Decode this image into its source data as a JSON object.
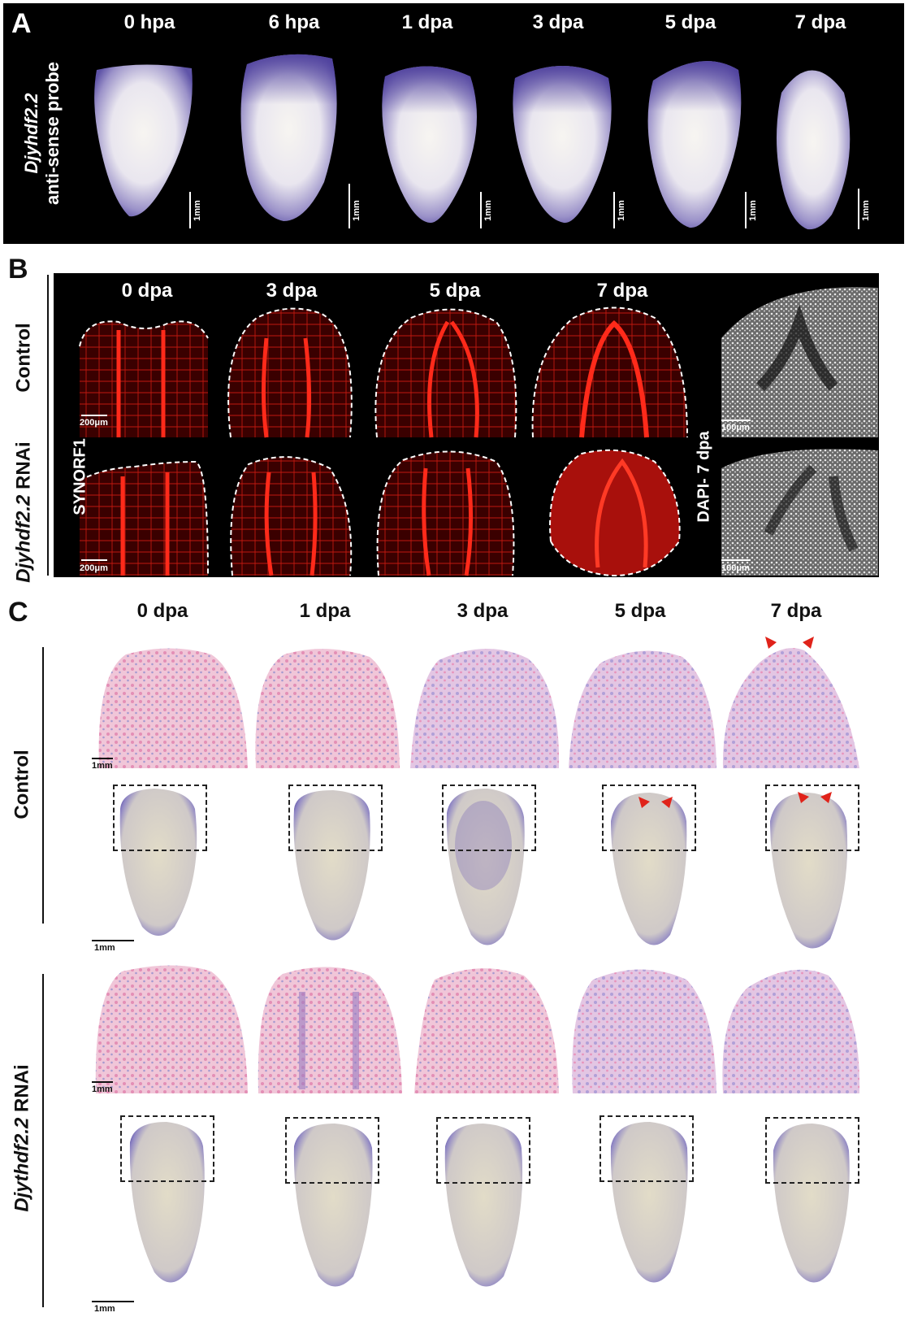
{
  "panel_a": {
    "letter": "A",
    "row_label_gene": "Djyhdf2.2",
    "row_label_probe": "anti-sense probe",
    "timepoints": [
      "0 hpa",
      "6 hpa",
      "1 dpa",
      "3 dpa",
      "5 dpa",
      "7 dpa"
    ],
    "scale_label": "1mm"
  },
  "panel_b": {
    "letter": "B",
    "timepoints": [
      "0 dpa",
      "3 dpa",
      "5 dpa",
      "7 dpa"
    ],
    "row_control": "Control",
    "row_rnai_gene": "Djyhdf2.2",
    "row_rnai_suffix": " RNAi",
    "stain_label": "SYNORF1",
    "dapi_label": "DAPI- 7 dpa",
    "scale_200": "200μm",
    "scale_100": "100μm"
  },
  "panel_c": {
    "letter": "C",
    "timepoints": [
      "0 dpa",
      "1 dpa",
      "3 dpa",
      "5 dpa",
      "7 dpa"
    ],
    "row_control": "Control",
    "row_rnai_gene": "Djythdf2.2",
    "row_rnai_suffix": " RNAi",
    "scale_label": "1mm"
  },
  "colors": {
    "panel_bg": "#000000",
    "synorf_red": "#e0201a",
    "he_pink": "#e7a9c6",
    "he_purple": "#9a8cc8",
    "wish_body": "#d9d4c2",
    "wish_stain": "#7265b5",
    "arrow_red": "#e0231a"
  }
}
